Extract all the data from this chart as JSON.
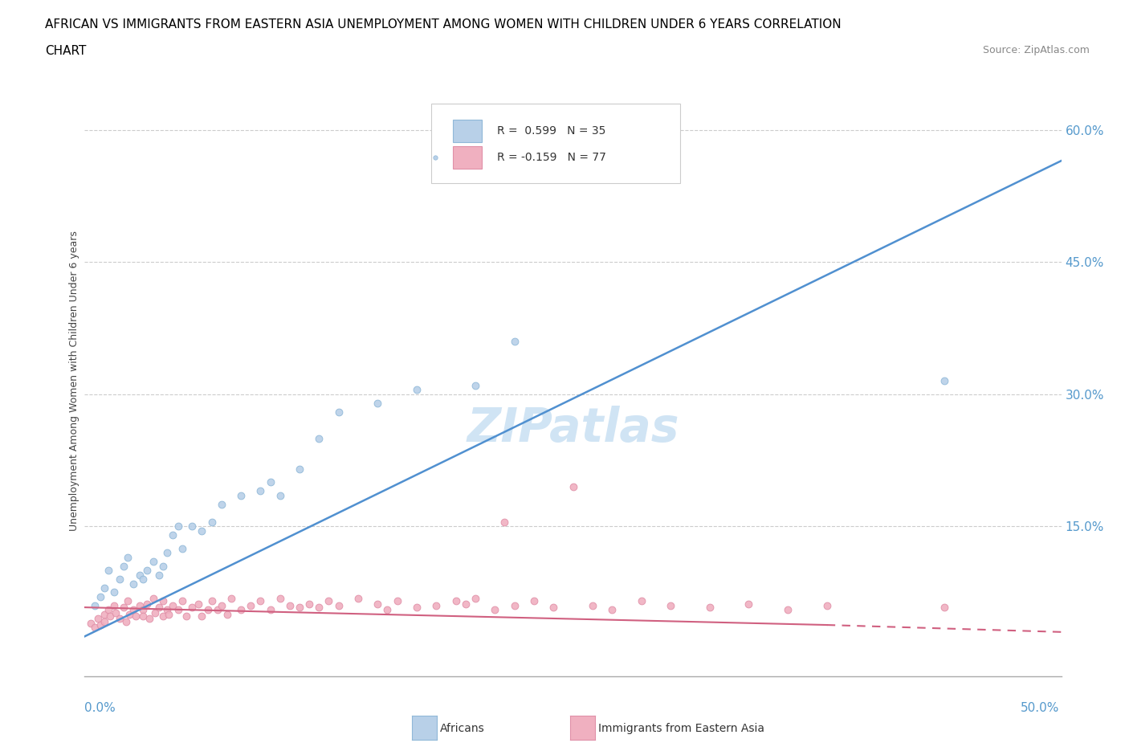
{
  "title_line1": "AFRICAN VS IMMIGRANTS FROM EASTERN ASIA UNEMPLOYMENT AMONG WOMEN WITH CHILDREN UNDER 6 YEARS CORRELATION",
  "title_line2": "CHART",
  "source": "Source: ZipAtlas.com",
  "ylabel": "Unemployment Among Women with Children Under 6 years",
  "legend1_label": "R =  0.599   N = 35",
  "legend2_label": "R = -0.159   N = 77",
  "legend_africans": "Africans",
  "legend_eastern_asia": "Immigrants from Eastern Asia",
  "ytick_labels": [
    "15.0%",
    "30.0%",
    "45.0%",
    "60.0%"
  ],
  "ytick_values": [
    0.15,
    0.3,
    0.45,
    0.6
  ],
  "xlim": [
    0.0,
    0.5
  ],
  "ylim": [
    -0.02,
    0.65
  ],
  "blue_scatter_face": "#b8d0e8",
  "blue_scatter_edge": "#90b8d8",
  "pink_scatter_face": "#f0b0c0",
  "pink_scatter_edge": "#e090a8",
  "blue_line_color": "#5090d0",
  "pink_line_color": "#d06080",
  "watermark": "ZIPatlas",
  "watermark_color": "#d0e4f4",
  "africans_x": [
    0.005,
    0.008,
    0.01,
    0.012,
    0.015,
    0.018,
    0.02,
    0.022,
    0.025,
    0.028,
    0.03,
    0.032,
    0.035,
    0.038,
    0.04,
    0.042,
    0.045,
    0.048,
    0.05,
    0.055,
    0.06,
    0.065,
    0.07,
    0.08,
    0.09,
    0.095,
    0.1,
    0.11,
    0.12,
    0.13,
    0.15,
    0.17,
    0.2,
    0.22,
    0.44
  ],
  "africans_y": [
    0.06,
    0.07,
    0.08,
    0.1,
    0.075,
    0.09,
    0.105,
    0.115,
    0.085,
    0.095,
    0.09,
    0.1,
    0.11,
    0.095,
    0.105,
    0.12,
    0.14,
    0.15,
    0.125,
    0.15,
    0.145,
    0.155,
    0.175,
    0.185,
    0.19,
    0.2,
    0.185,
    0.215,
    0.25,
    0.28,
    0.29,
    0.305,
    0.31,
    0.36,
    0.315
  ],
  "eastern_asia_x": [
    0.003,
    0.005,
    0.007,
    0.008,
    0.01,
    0.01,
    0.012,
    0.013,
    0.015,
    0.016,
    0.018,
    0.02,
    0.021,
    0.022,
    0.023,
    0.025,
    0.026,
    0.028,
    0.03,
    0.03,
    0.032,
    0.033,
    0.035,
    0.036,
    0.038,
    0.04,
    0.04,
    0.042,
    0.043,
    0.045,
    0.048,
    0.05,
    0.052,
    0.055,
    0.058,
    0.06,
    0.063,
    0.065,
    0.068,
    0.07,
    0.073,
    0.075,
    0.08,
    0.085,
    0.09,
    0.095,
    0.1,
    0.105,
    0.11,
    0.115,
    0.12,
    0.125,
    0.13,
    0.14,
    0.15,
    0.155,
    0.16,
    0.17,
    0.18,
    0.19,
    0.195,
    0.2,
    0.21,
    0.215,
    0.22,
    0.23,
    0.24,
    0.25,
    0.26,
    0.27,
    0.285,
    0.3,
    0.32,
    0.34,
    0.36,
    0.38,
    0.44
  ],
  "eastern_asia_y": [
    0.04,
    0.035,
    0.045,
    0.038,
    0.05,
    0.042,
    0.055,
    0.048,
    0.06,
    0.052,
    0.045,
    0.058,
    0.042,
    0.065,
    0.05,
    0.055,
    0.048,
    0.06,
    0.055,
    0.048,
    0.062,
    0.045,
    0.068,
    0.052,
    0.058,
    0.048,
    0.065,
    0.055,
    0.05,
    0.06,
    0.055,
    0.065,
    0.048,
    0.058,
    0.062,
    0.048,
    0.055,
    0.065,
    0.055,
    0.06,
    0.05,
    0.068,
    0.055,
    0.06,
    0.065,
    0.055,
    0.068,
    0.06,
    0.058,
    0.062,
    0.058,
    0.065,
    0.06,
    0.068,
    0.062,
    0.055,
    0.065,
    0.058,
    0.06,
    0.065,
    0.062,
    0.068,
    0.055,
    0.155,
    0.06,
    0.065,
    0.058,
    0.195,
    0.06,
    0.055,
    0.065,
    0.06,
    0.058,
    0.062,
    0.055,
    0.06,
    0.058
  ],
  "bg_color": "#ffffff",
  "grid_color": "#cccccc",
  "axis_color": "#aaaaaa",
  "tick_color": "#5599cc",
  "title_fontsize": 11,
  "source_fontsize": 9,
  "ylabel_fontsize": 9,
  "tick_fontsize": 11,
  "legend_fontsize": 10,
  "watermark_fontsize": 42,
  "scatter_size": 40
}
